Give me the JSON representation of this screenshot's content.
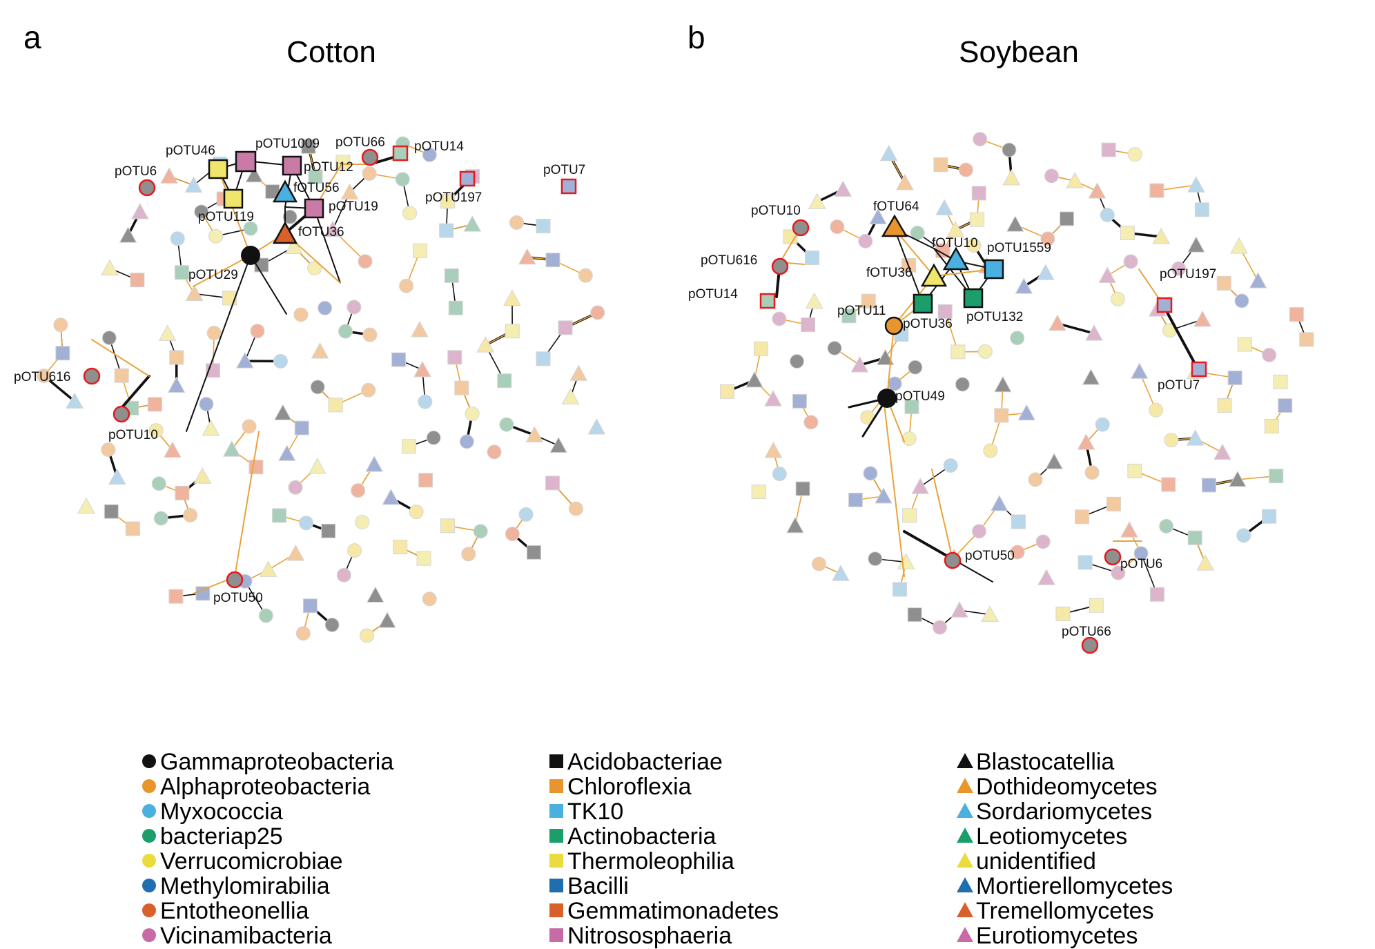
{
  "panels": [
    {
      "letter": "a",
      "title": "Cotton"
    },
    {
      "letter": "b",
      "title": "Soybean"
    }
  ],
  "colors": {
    "bg_node": [
      "#f3c9a0",
      "#b8d7ea",
      "#a9cfbb",
      "#f5eeb2",
      "#a3b0d6",
      "#f0b49e",
      "#dcb5cd",
      "#f6e9a8",
      "#8f8f8f"
    ],
    "edge_orange": "#e8a33a",
    "edge_black": "#111111",
    "highlight_border": "#e41a1c"
  },
  "node_labels": {
    "cotton": {
      "potu46": "pOTU46",
      "potu1009": "pOTU1009",
      "potu66": "pOTU66",
      "potu14": "pOTU14",
      "potu6": "pOTU6",
      "potu12": "pOTU12",
      "fotu56": "fOTU56",
      "potu7": "pOTU7",
      "potu197": "pOTU197",
      "potu119": "pOTU119",
      "potu19": "pOTU19",
      "fotu36": "fOTU36",
      "potu29": "pOTU29",
      "potu616": "pOTU616",
      "potu10": "pOTU10",
      "potu50": "pOTU50"
    },
    "soybean": {
      "potu10": "pOTU10",
      "fotu64": "fOTU64",
      "fotu10": "fOTU10",
      "potu1559": "pOTU1559",
      "potu616": "pOTU616",
      "potu197": "pOTU197",
      "potu14": "pOTU14",
      "fotu36": "fOTU36",
      "potu11": "pOTU11",
      "potu132": "pOTU132",
      "potu36": "pOTU36",
      "potu49": "pOTU49",
      "potu7": "pOTU7",
      "potu50": "pOTU50",
      "potu6": "pOTU6",
      "potu66": "pOTU66"
    }
  },
  "legend": {
    "circles": [
      {
        "label": "Gammaproteobacteria",
        "color": "#111111"
      },
      {
        "label": "Alphaproteobacteria",
        "color": "#e8952e"
      },
      {
        "label": "Myxococcia",
        "color": "#4ab0e0"
      },
      {
        "label": "bacteriap25",
        "color": "#1b9e6a"
      },
      {
        "label": "Verrucomicrobiae",
        "color": "#e9dc3c"
      },
      {
        "label": "Methylomirabilia",
        "color": "#1f6eb0"
      },
      {
        "label": "Entotheonellia",
        "color": "#d95f2b"
      },
      {
        "label": "Vicinamibacteria",
        "color": "#c76aa6"
      }
    ],
    "squares": [
      {
        "label": "Acidobacteriae",
        "color": "#111111"
      },
      {
        "label": "Chloroflexia",
        "color": "#e8952e"
      },
      {
        "label": "TK10",
        "color": "#4ab0e0"
      },
      {
        "label": "Actinobacteria",
        "color": "#1b9e6a"
      },
      {
        "label": "Thermoleophilia",
        "color": "#e9dc3c"
      },
      {
        "label": "Bacilli",
        "color": "#1f6eb0"
      },
      {
        "label": "Gemmatimonadetes",
        "color": "#d95f2b"
      },
      {
        "label": "Nitrososphaeria",
        "color": "#c76aa6"
      }
    ],
    "triangles": [
      {
        "label": "Blastocatellia",
        "color": "#111111"
      },
      {
        "label": "Dothideomycetes",
        "color": "#e8952e"
      },
      {
        "label": "Sordariomycetes",
        "color": "#4ab0e0"
      },
      {
        "label": "Leotiomycetes",
        "color": "#1b9e6a"
      },
      {
        "label": "unidentified",
        "color": "#e9dc3c"
      },
      {
        "label": "Mortierellomycetes",
        "color": "#1f6eb0"
      },
      {
        "label": "Tremellomycetes",
        "color": "#d95f2b"
      },
      {
        "label": "Eurotiomycetes",
        "color": "#c76aa6"
      }
    ]
  }
}
